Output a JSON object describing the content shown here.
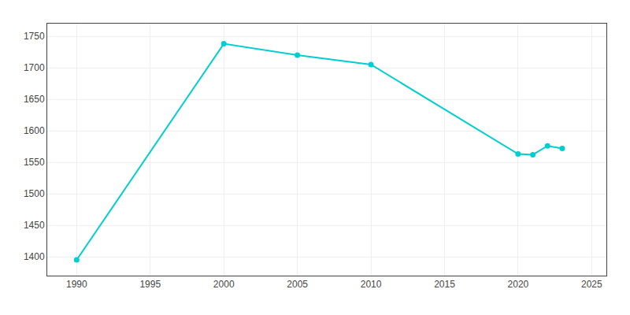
{
  "chart_data": {
    "type": "line",
    "x": [
      1990,
      2000,
      2005,
      2010,
      2020,
      2021,
      2022,
      2023
    ],
    "values": [
      1395,
      1738,
      1720,
      1705,
      1563,
      1562,
      1576,
      1572
    ],
    "color": "#00CED1",
    "marker": "circle",
    "line_style": "solid",
    "xlim": [
      1988,
      2026
    ],
    "ylim": [
      1370,
      1770
    ],
    "xticks": [
      1990,
      1995,
      2000,
      2005,
      2010,
      2015,
      2020,
      2025
    ],
    "yticks": [
      1400,
      1450,
      1500,
      1550,
      1600,
      1650,
      1700,
      1750
    ],
    "grid": true
  }
}
